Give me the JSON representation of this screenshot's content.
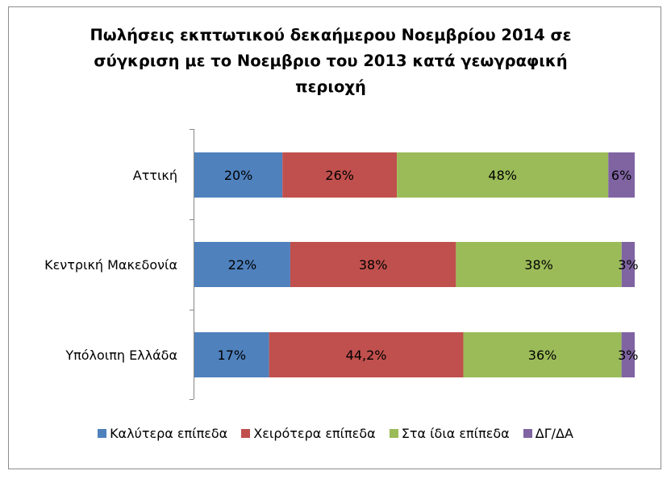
{
  "chart_data": {
    "type": "bar",
    "orientation": "horizontal",
    "stacked": true,
    "title_lines": [
      "Πωλήσεις εκπτωτικού δεκαήμερου Νοεμβρίου 2014 σε",
      "σύγκριση με το Νοεμβριο του 2013 κατά γεωγραφική",
      "περιοχή"
    ],
    "categories": [
      "Αττική",
      "Κεντρική Μακεδονία",
      "Υπόλοιπη Ελλάδα"
    ],
    "series": [
      {
        "name": "Καλύτερα επίπεδα",
        "color": "#4f81bd",
        "values": [
          20,
          22,
          17
        ],
        "labels": [
          "20%",
          "22%",
          "17%"
        ]
      },
      {
        "name": "Χειρότερα επίπεδα",
        "color": "#c0504d",
        "values": [
          26,
          38,
          44.2
        ],
        "labels": [
          "26%",
          "38%",
          "44,2%"
        ]
      },
      {
        "name": "Στα ίδια επίπεδα",
        "color": "#9bbb59",
        "values": [
          48,
          38,
          36
        ],
        "labels": [
          "48%",
          "38%",
          "36%"
        ]
      },
      {
        "name": "ΔΓ/ΔΑ",
        "color": "#8064a2",
        "values": [
          6,
          3,
          3
        ],
        "labels": [
          "6%",
          "3%",
          "3%"
        ]
      }
    ],
    "legend_position": "bottom",
    "grid": false
  }
}
